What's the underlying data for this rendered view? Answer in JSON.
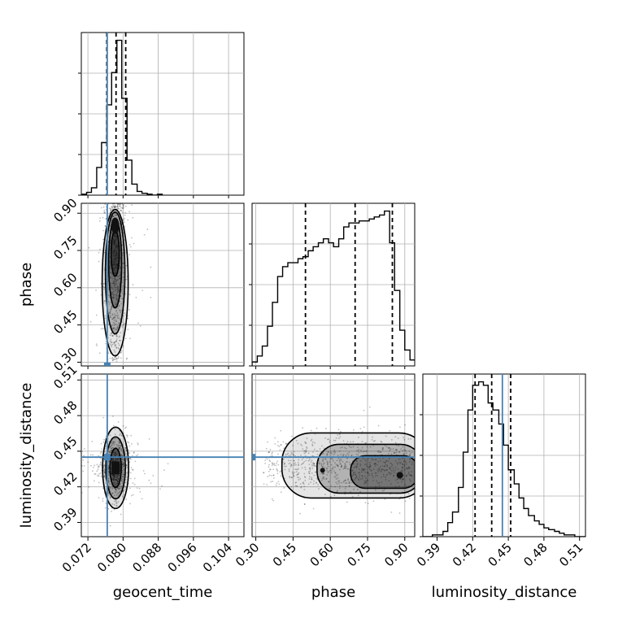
{
  "chart_data": {
    "type": "corner",
    "parameters": [
      "geocent_time",
      "phase",
      "luminosity_distance"
    ],
    "axis_labels": {
      "geocent_time": "geocent_time",
      "phase": "phase",
      "luminosity_distance": "luminosity_distance"
    },
    "ranges": {
      "geocent_time": [
        0.0705,
        0.1075
      ],
      "phase": [
        0.285,
        0.94
      ],
      "luminosity_distance": [
        0.378,
        0.515
      ]
    },
    "ticks": {
      "geocent_time": [
        "0.072",
        "0.080",
        "0.088",
        "0.096",
        "0.104"
      ],
      "phase": [
        "0.30",
        "0.45",
        "0.60",
        "0.75",
        "0.90"
      ],
      "luminosity_distance": [
        "0.39",
        "0.42",
        "0.45",
        "0.48",
        "0.51"
      ]
    },
    "truths": {
      "geocent_time": 0.0764,
      "luminosity_distance": 0.445
    },
    "truth_color": "#4682b4",
    "quantiles": {
      "geocent_time": [
        0.0763,
        0.0784,
        0.0806
      ],
      "phase": [
        0.5,
        0.7,
        0.85
      ],
      "luminosity_distance": [
        0.422,
        0.436,
        0.452
      ]
    },
    "histograms": {
      "geocent_time": {
        "edges": [
          0.0705,
          0.0717,
          0.0728,
          0.074,
          0.0751,
          0.0763,
          0.0774,
          0.0786,
          0.0797,
          0.0809,
          0.082,
          0.0832,
          0.0843,
          0.0855,
          0.0866,
          0.0878,
          0.0889
        ],
        "counts": [
          1,
          3,
          8,
          30,
          57,
          98,
          133,
          168,
          105,
          38,
          12,
          4,
          2,
          1,
          0,
          1
        ]
      },
      "phase": {
        "edges": [
          0.285,
          0.306,
          0.326,
          0.347,
          0.367,
          0.388,
          0.408,
          0.429,
          0.449,
          0.47,
          0.49,
          0.511,
          0.531,
          0.552,
          0.572,
          0.593,
          0.613,
          0.634,
          0.654,
          0.675,
          0.695,
          0.716,
          0.736,
          0.757,
          0.777,
          0.798,
          0.818,
          0.839,
          0.859,
          0.88,
          0.9,
          0.921,
          0.941
        ],
        "counts": [
          2,
          5,
          10,
          20,
          32,
          45,
          50,
          52,
          52,
          54,
          55,
          58,
          60,
          62,
          64,
          62,
          60,
          64,
          70,
          72,
          72,
          73,
          73,
          74,
          75,
          76,
          78,
          62,
          38,
          18,
          8,
          3
        ]
      },
      "luminosity_distance": {
        "edges": [
          0.378,
          0.382,
          0.386,
          0.391,
          0.395,
          0.399,
          0.403,
          0.408,
          0.412,
          0.416,
          0.42,
          0.425,
          0.429,
          0.433,
          0.437,
          0.442,
          0.446,
          0.45,
          0.455,
          0.459,
          0.463,
          0.467,
          0.472,
          0.476,
          0.48,
          0.484,
          0.489,
          0.493,
          0.497,
          0.501,
          0.506,
          0.51,
          0.515
        ],
        "counts": [
          0,
          0,
          1,
          1,
          3,
          8,
          14,
          28,
          48,
          72,
          86,
          88,
          86,
          76,
          72,
          64,
          52,
          38,
          30,
          22,
          16,
          12,
          9,
          7,
          5,
          4,
          3,
          2,
          1,
          1,
          0,
          0
        ]
      }
    },
    "pairs": [
      {
        "x": "geocent_time",
        "y": "phase",
        "center": [
          0.0782,
          0.82
        ],
        "spread": [
          0.0012,
          0.17
        ]
      },
      {
        "x": "geocent_time",
        "y": "luminosity_distance",
        "center": [
          0.0783,
          0.436
        ],
        "spread": [
          0.0016,
          0.013
        ]
      },
      {
        "x": "phase",
        "y": "luminosity_distance",
        "center": [
          0.7,
          0.438
        ],
        "spread": [
          0.17,
          0.013
        ]
      }
    ]
  }
}
